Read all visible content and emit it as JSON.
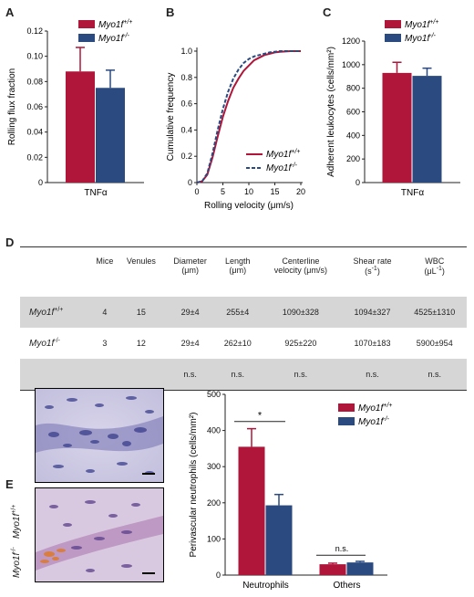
{
  "panels": {
    "A": "A",
    "B": "B",
    "C": "C",
    "D": "D",
    "E": "E"
  },
  "colors": {
    "wt": "#b0163a",
    "ko": "#2b4a80",
    "grey_row": "#d6d6d6"
  },
  "legend": {
    "wt_base": "Myo1f",
    "wt_sup": "+/+",
    "ko_base": "Myo1f",
    "ko_sup": "-/-"
  },
  "chart_data": [
    {
      "panel": "A",
      "type": "bar",
      "categories": [
        "TNFα"
      ],
      "series": [
        {
          "name": "Myo1f+/+",
          "values": [
            0.088
          ],
          "error": [
            0.019
          ]
        },
        {
          "name": "Myo1f-/-",
          "values": [
            0.075
          ],
          "error": [
            0.014
          ]
        }
      ],
      "ylabel": "Rolling flux fraction",
      "ylim": [
        0,
        0.12
      ],
      "yticks": [
        "0",
        "0.02",
        "0.04",
        "0.06",
        "0.08",
        "0.10",
        "0.12"
      ],
      "xlabel": "TNFα",
      "legend": "top-right"
    },
    {
      "panel": "B",
      "type": "line",
      "xlabel": "Rolling velocity (μm/s)",
      "ylabel": "Cumulative frequency",
      "xlim": [
        0,
        20
      ],
      "ylim": [
        0,
        1.0
      ],
      "xticks": [
        "0",
        "5",
        "10",
        "15",
        "20"
      ],
      "yticks": [
        "0",
        "0.2",
        "0.4",
        "0.6",
        "0.8",
        "1.0"
      ],
      "series": [
        {
          "name": "Myo1f+/+",
          "style": "solid",
          "x": [
            0,
            1,
            2,
            3,
            4,
            5,
            6,
            7,
            8,
            9,
            10,
            11,
            12,
            13,
            14,
            15,
            16,
            18,
            20
          ],
          "y": [
            0,
            0.01,
            0.06,
            0.19,
            0.35,
            0.5,
            0.62,
            0.72,
            0.79,
            0.85,
            0.89,
            0.93,
            0.95,
            0.97,
            0.98,
            0.99,
            0.995,
            1.0,
            1.0
          ]
        },
        {
          "name": "Myo1f-/-",
          "style": "dashed",
          "x": [
            0,
            1,
            2,
            3,
            4,
            5,
            6,
            7,
            8,
            9,
            10,
            11,
            12,
            13,
            14,
            15,
            16,
            18,
            20
          ],
          "y": [
            0,
            0.01,
            0.07,
            0.22,
            0.4,
            0.56,
            0.69,
            0.79,
            0.86,
            0.91,
            0.94,
            0.96,
            0.97,
            0.98,
            0.99,
            0.995,
            1.0,
            1.0,
            1.0
          ]
        }
      ],
      "legend": "bottom-right"
    },
    {
      "panel": "C",
      "type": "bar",
      "categories": [
        "TNFα"
      ],
      "series": [
        {
          "name": "Myo1f+/+",
          "values": [
            930
          ],
          "error": [
            90
          ]
        },
        {
          "name": "Myo1f-/-",
          "values": [
            905
          ],
          "error": [
            65
          ]
        }
      ],
      "ylabel": "Adherent leukocytes (cells/mm²)",
      "ylim": [
        0,
        1200
      ],
      "yticks": [
        "0",
        "200",
        "400",
        "600",
        "800",
        "1000",
        "1200"
      ],
      "xlabel": "TNFα",
      "legend": "top-right"
    },
    {
      "panel": "E",
      "type": "bar",
      "categories": [
        "Neutrophils",
        "Others"
      ],
      "series": [
        {
          "name": "Myo1f+/+",
          "values": [
            355,
            30
          ],
          "error": [
            50,
            3
          ]
        },
        {
          "name": "Myo1f-/-",
          "values": [
            193,
            35
          ],
          "error": [
            30,
            3
          ]
        }
      ],
      "ylabel": "Perivascular neutrophils (cells/mm²)",
      "ylim": [
        0,
        500
      ],
      "yticks": [
        "0",
        "100",
        "200",
        "300",
        "400",
        "500"
      ],
      "annotations": [
        "*",
        "n.s."
      ],
      "legend": "top-right"
    }
  ],
  "table": {
    "headers": [
      {
        "l1": "Mice",
        "l2": ""
      },
      {
        "l1": "Venules",
        "l2": ""
      },
      {
        "l1": "Diameter",
        "l2": "(μm)"
      },
      {
        "l1": "Length",
        "l2": "(μm)"
      },
      {
        "l1": "Centerline",
        "l2": "velocity (μm/s)"
      },
      {
        "l1": "Shear rate",
        "l2": "(s",
        "l2sup": "-1",
        "l2end": ")"
      },
      {
        "l1": "WBC",
        "l2": "(μL",
        "l2sup": "-1",
        "l2end": ")"
      }
    ],
    "rows": [
      {
        "label_base": "Myo1f",
        "label_sup": "+/+",
        "cells": [
          "4",
          "15",
          "29±4",
          "255±4",
          "1090±328",
          "1094±327",
          "4525±1310"
        ]
      },
      {
        "label_base": "Myo1f",
        "label_sup": "-/-",
        "cells": [
          "3",
          "12",
          "29±4",
          "262±10",
          "925±220",
          "1070±183",
          "5900±954"
        ]
      },
      {
        "label_base": "",
        "label_sup": "",
        "cells": [
          "",
          "",
          "n.s.",
          "n.s.",
          "n.s.",
          "n.s.",
          "n.s."
        ]
      }
    ]
  },
  "micrographs": [
    {
      "label_base": "Myo1f",
      "label_sup": "+/+"
    },
    {
      "label_base": "Myo1f",
      "label_sup": "-/-"
    }
  ]
}
